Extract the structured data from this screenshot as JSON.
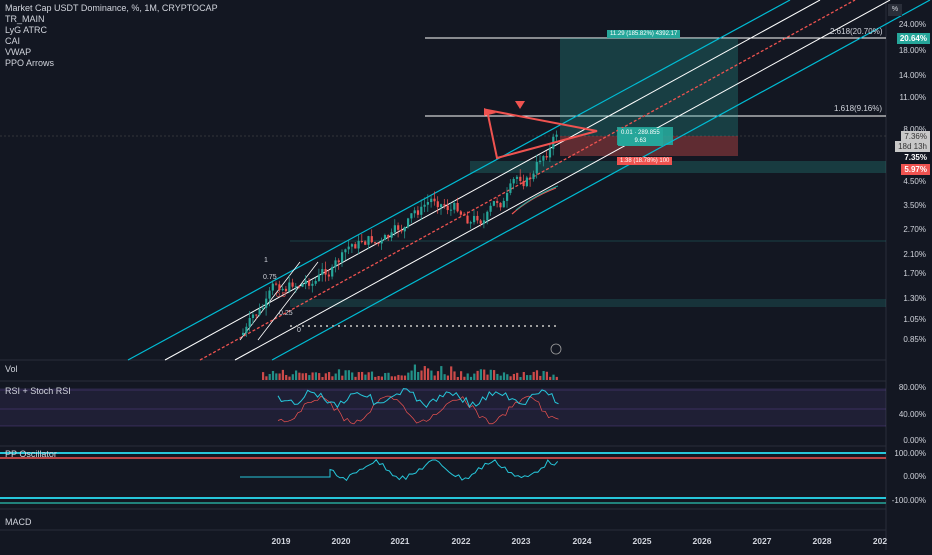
{
  "legend": {
    "symbol": "Market Cap USDT Dominance, %, 1M, CRYPTOCAP",
    "indicators": [
      "TR_MAIN",
      "LyG ATRC",
      "CAI",
      "VWAP",
      "PPO Arrows"
    ]
  },
  "scale_button": "%",
  "price_axis": [
    "24.00%",
    "20.64%",
    "18.00%",
    "14.00%",
    "11.00%",
    "8.00%",
    "7.35%",
    "5.97%",
    "4.50%",
    "3.50%",
    "2.70%",
    "2.10%",
    "1.70%",
    "1.30%",
    "1.05%",
    "0.85%"
  ],
  "tags": {
    "current": "20.64%",
    "box1": "7.36%",
    "box2": "18d 13h",
    "level": "7.35%",
    "low": "5.97%"
  },
  "fib_levels": [
    {
      "label": "2.618(20.70%)"
    },
    {
      "label": "1.618(9.16%)"
    }
  ],
  "channel_labels": [
    "1",
    "0.75",
    "0.5",
    "0.25",
    "0"
  ],
  "position_labels": {
    "target": "11.29 (185.82%) 4392.17",
    "entry_line1": "0.01 · 289.855",
    "entry_line2": "9.63",
    "stop": "1.38 (18.78%) 100"
  },
  "panes": {
    "vol": "Vol",
    "rsi": "RSI + Stoch RSI",
    "ppo": "PP Oscillator",
    "macd": "MACD"
  },
  "rsi_axis": [
    "80.00%",
    "40.00%",
    "0.00%"
  ],
  "ppo_axis": [
    "100.00%",
    "0.00%",
    "-100.00%"
  ],
  "time_axis": [
    "2019",
    "2020",
    "2021",
    "2022",
    "2023",
    "2024",
    "2025",
    "2026",
    "2027",
    "2028",
    "202"
  ],
  "colors": {
    "background": "#131722",
    "up": "#26a69a",
    "down": "#ef5350",
    "cyan": "#00bcd4",
    "channel": "#ffffff",
    "fib_line": "#ffffff"
  }
}
